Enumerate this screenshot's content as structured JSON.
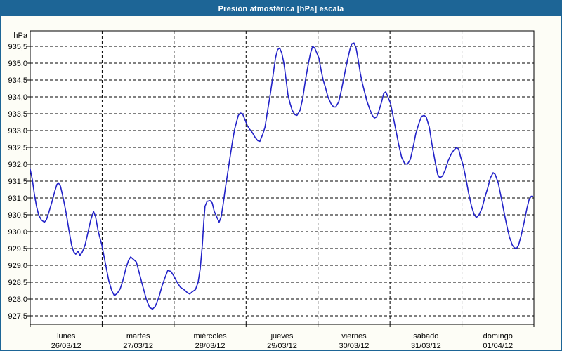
{
  "title": "Presión atmosférica [hPa] escala",
  "colors": {
    "titlebar_bg": "#1d6596",
    "frame_border": "#1d6596",
    "window_bg": "#fdfdf6",
    "plot_bg": "#ffffff",
    "line": "#2222c8",
    "grid": "#000000",
    "axis": "#000000",
    "text": "#000000",
    "title_text": "#ffffff"
  },
  "y_axis": {
    "unit_label": "hPa",
    "min": 927.5,
    "max": 935.5,
    "step": 0.5,
    "tick_labels": [
      "935,5",
      "935,0",
      "934,5",
      "934,0",
      "933,5",
      "933,0",
      "932,5",
      "932,0",
      "931,5",
      "931,0",
      "930,5",
      "930,0",
      "929,5",
      "929,0",
      "928,5",
      "928,0",
      "927,5"
    ]
  },
  "x_axis": {
    "days": [
      {
        "name": "lunes",
        "date": "26/03/12"
      },
      {
        "name": "martes",
        "date": "27/03/12"
      },
      {
        "name": "miércoles",
        "date": "28/03/12"
      },
      {
        "name": "jueves",
        "date": "29/03/12"
      },
      {
        "name": "viernes",
        "date": "30/03/12"
      },
      {
        "name": "sábado",
        "date": "31/03/12"
      },
      {
        "name": "domingo",
        "date": "01/04/12"
      }
    ]
  },
  "chart_data": {
    "type": "line",
    "title": "Presión atmosférica [hPa] escala",
    "xlabel": "",
    "ylabel": "hPa",
    "x_unit": "hours since lunes 26/03/12 00:00",
    "x_range": [
      0,
      168
    ],
    "ylim": [
      927.5,
      935.5
    ],
    "grid": true,
    "legend": "none",
    "series": [
      {
        "name": "Presión atmosférica",
        "points": [
          [
            0,
            931.85
          ],
          [
            0.7,
            931.55
          ],
          [
            1.4,
            931.1
          ],
          [
            2.1,
            930.75
          ],
          [
            2.8,
            930.5
          ],
          [
            3.7,
            930.35
          ],
          [
            4.7,
            930.28
          ],
          [
            5.4,
            930.35
          ],
          [
            6.3,
            930.6
          ],
          [
            7.3,
            930.9
          ],
          [
            8.2,
            931.2
          ],
          [
            8.9,
            931.4
          ],
          [
            9.4,
            931.45
          ],
          [
            10.1,
            931.35
          ],
          [
            11,
            931.0
          ],
          [
            12,
            930.55
          ],
          [
            12.9,
            930.05
          ],
          [
            13.8,
            929.6
          ],
          [
            14.5,
            929.4
          ],
          [
            15.2,
            929.33
          ],
          [
            15.9,
            929.42
          ],
          [
            16.6,
            929.3
          ],
          [
            17.3,
            929.38
          ],
          [
            18.3,
            929.6
          ],
          [
            19.2,
            929.95
          ],
          [
            20.2,
            930.35
          ],
          [
            21.1,
            930.6
          ],
          [
            21.8,
            930.45
          ],
          [
            22.7,
            930.0
          ],
          [
            23.9,
            929.6
          ],
          [
            25.1,
            929.05
          ],
          [
            26.2,
            928.55
          ],
          [
            27.2,
            928.25
          ],
          [
            28.1,
            928.1
          ],
          [
            29.1,
            928.18
          ],
          [
            30,
            928.3
          ],
          [
            30.9,
            928.55
          ],
          [
            31.9,
            928.9
          ],
          [
            32.8,
            929.15
          ],
          [
            33.5,
            929.25
          ],
          [
            34.4,
            929.18
          ],
          [
            35.4,
            929.1
          ],
          [
            36.3,
            928.8
          ],
          [
            37.5,
            928.4
          ],
          [
            38.7,
            928.0
          ],
          [
            39.8,
            927.75
          ],
          [
            40.8,
            927.7
          ],
          [
            41.7,
            927.78
          ],
          [
            42.9,
            928.05
          ],
          [
            44,
            928.4
          ],
          [
            45,
            928.65
          ],
          [
            45.9,
            928.85
          ],
          [
            46.9,
            928.82
          ],
          [
            47.8,
            928.7
          ],
          [
            49,
            928.5
          ],
          [
            50.1,
            928.35
          ],
          [
            51.3,
            928.28
          ],
          [
            52.3,
            928.2
          ],
          [
            53.2,
            928.15
          ],
          [
            54.1,
            928.22
          ],
          [
            55.1,
            928.28
          ],
          [
            56,
            928.5
          ],
          [
            56.7,
            928.9
          ],
          [
            57.4,
            929.6
          ],
          [
            57.9,
            930.3
          ],
          [
            58.3,
            930.75
          ],
          [
            59,
            930.9
          ],
          [
            60,
            930.92
          ],
          [
            60.7,
            930.85
          ],
          [
            61.4,
            930.6
          ],
          [
            62.3,
            930.42
          ],
          [
            63,
            930.28
          ],
          [
            63.7,
            930.45
          ],
          [
            64.4,
            930.85
          ],
          [
            65.1,
            931.3
          ],
          [
            65.8,
            931.7
          ],
          [
            66.8,
            932.3
          ],
          [
            67.5,
            932.7
          ],
          [
            68.2,
            933.05
          ],
          [
            69.4,
            933.45
          ],
          [
            70.1,
            933.52
          ],
          [
            70.8,
            933.5
          ],
          [
            71.5,
            933.35
          ],
          [
            72.4,
            933.15
          ],
          [
            73.1,
            933.05
          ],
          [
            74,
            932.95
          ],
          [
            75,
            932.8
          ],
          [
            75.9,
            932.7
          ],
          [
            76.6,
            932.68
          ],
          [
            77.6,
            932.9
          ],
          [
            78.3,
            933.1
          ],
          [
            79.2,
            933.6
          ],
          [
            80.1,
            934.1
          ],
          [
            81.1,
            934.7
          ],
          [
            81.8,
            935.15
          ],
          [
            82.5,
            935.4
          ],
          [
            83.2,
            935.45
          ],
          [
            83.9,
            935.3
          ],
          [
            84.6,
            935.0
          ],
          [
            85.3,
            934.55
          ],
          [
            86,
            934.05
          ],
          [
            86.7,
            933.8
          ],
          [
            87.4,
            933.6
          ],
          [
            88.3,
            933.47
          ],
          [
            89,
            933.45
          ],
          [
            90,
            933.6
          ],
          [
            90.9,
            933.95
          ],
          [
            91.8,
            934.5
          ],
          [
            92.8,
            935.0
          ],
          [
            93.5,
            935.3
          ],
          [
            94.2,
            935.5
          ],
          [
            94.9,
            935.45
          ],
          [
            95.6,
            935.3
          ],
          [
            96.3,
            935.15
          ],
          [
            97,
            934.8
          ],
          [
            97.7,
            934.5
          ],
          [
            98.4,
            934.3
          ],
          [
            99.3,
            934.0
          ],
          [
            100.3,
            933.8
          ],
          [
            101.2,
            933.7
          ],
          [
            101.9,
            933.7
          ],
          [
            102.9,
            933.85
          ],
          [
            103.8,
            934.2
          ],
          [
            104.7,
            934.6
          ],
          [
            105.7,
            935.05
          ],
          [
            106.6,
            935.4
          ],
          [
            107.3,
            935.58
          ],
          [
            108,
            935.6
          ],
          [
            108.7,
            935.45
          ],
          [
            109.4,
            935.1
          ],
          [
            110.1,
            934.7
          ],
          [
            110.8,
            934.4
          ],
          [
            111.5,
            934.15
          ],
          [
            112.2,
            933.9
          ],
          [
            113.2,
            933.65
          ],
          [
            114.1,
            933.45
          ],
          [
            114.8,
            933.37
          ],
          [
            115.5,
            933.4
          ],
          [
            116.2,
            933.55
          ],
          [
            117.2,
            933.85
          ],
          [
            117.9,
            934.1
          ],
          [
            118.6,
            934.15
          ],
          [
            119.3,
            934.0
          ],
          [
            120.2,
            933.8
          ],
          [
            121.1,
            933.4
          ],
          [
            122.1,
            932.95
          ],
          [
            123,
            932.55
          ],
          [
            123.9,
            932.2
          ],
          [
            124.9,
            932.02
          ],
          [
            125.8,
            932.0
          ],
          [
            126.8,
            932.15
          ],
          [
            127.7,
            932.5
          ],
          [
            128.6,
            932.9
          ],
          [
            129.6,
            933.2
          ],
          [
            130.5,
            933.42
          ],
          [
            131.4,
            933.45
          ],
          [
            132.1,
            933.4
          ],
          [
            133.1,
            933.1
          ],
          [
            134,
            932.6
          ],
          [
            135,
            932.1
          ],
          [
            135.9,
            931.7
          ],
          [
            136.6,
            931.6
          ],
          [
            137.5,
            931.65
          ],
          [
            138.5,
            931.85
          ],
          [
            139.4,
            932.1
          ],
          [
            140.4,
            932.3
          ],
          [
            141.3,
            932.42
          ],
          [
            142.2,
            932.5
          ],
          [
            142.9,
            932.45
          ],
          [
            143.6,
            932.2
          ],
          [
            144.3,
            932.0
          ],
          [
            145.3,
            931.6
          ],
          [
            146.2,
            931.15
          ],
          [
            147.2,
            930.75
          ],
          [
            148.1,
            930.5
          ],
          [
            148.8,
            930.42
          ],
          [
            149.7,
            930.5
          ],
          [
            150.7,
            930.7
          ],
          [
            151.6,
            931.0
          ],
          [
            152.6,
            931.3
          ],
          [
            153.5,
            931.6
          ],
          [
            154.4,
            931.75
          ],
          [
            155.1,
            931.7
          ],
          [
            156.1,
            931.45
          ],
          [
            157,
            931.05
          ],
          [
            158,
            930.6
          ],
          [
            158.9,
            930.2
          ],
          [
            159.8,
            929.85
          ],
          [
            160.8,
            929.6
          ],
          [
            161.5,
            929.52
          ],
          [
            162.2,
            929.5
          ],
          [
            162.9,
            929.6
          ],
          [
            163.8,
            929.9
          ],
          [
            164.8,
            930.3
          ],
          [
            165.7,
            930.7
          ],
          [
            166.4,
            930.95
          ],
          [
            167.1,
            931.05
          ],
          [
            167.6,
            931.05
          ]
        ]
      }
    ]
  }
}
